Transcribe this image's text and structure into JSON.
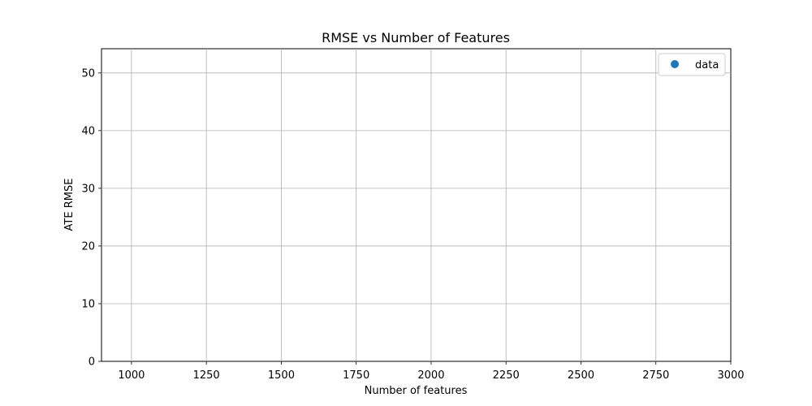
{
  "chart_data": {
    "type": "scatter",
    "title": "RMSE vs Number of Features",
    "xlabel": "Number of features",
    "ylabel": "ATE RMSE",
    "xlim": [
      900,
      3000
    ],
    "ylim": [
      0,
      54.2
    ],
    "xticks": [
      1000,
      1250,
      1500,
      1750,
      2000,
      2250,
      2500,
      2750,
      3000
    ],
    "yticks": [
      0,
      10,
      20,
      30,
      40,
      50
    ],
    "xtick_labels": [
      "1000",
      "1250",
      "1500",
      "1750",
      "2000",
      "2250",
      "2500",
      "2750",
      "3000"
    ],
    "ytick_labels": [
      "0",
      "10",
      "20",
      "30",
      "40",
      "50"
    ],
    "grid": true,
    "legend_position": "top-right",
    "series": [
      {
        "name": "data",
        "color": "#1f77b4",
        "x": [],
        "y": []
      }
    ]
  }
}
